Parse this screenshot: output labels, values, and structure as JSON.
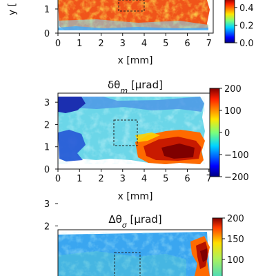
{
  "chart_data": [
    {
      "type": "heatmap",
      "title": "",
      "xlabel": "x [mm]",
      "ylabel": "y [",
      "xticks": [
        "0",
        "1",
        "2",
        "3",
        "4",
        "5",
        "6",
        "7"
      ],
      "yticks": [
        "0",
        "1"
      ],
      "xlim": [
        0,
        7.2
      ],
      "ylim": [
        0,
        1.6
      ],
      "colorbar": {
        "ticks": [
          "0.0",
          "0.2",
          "0.4"
        ],
        "range": [
          0.0,
          0.5
        ],
        "colormap": "jet"
      },
      "roi_box_mm": {
        "x0": 2.9,
        "x1": 4.1,
        "y0": 1.05,
        "y1": 1.6
      },
      "dominant_value": 0.42
    },
    {
      "type": "heatmap",
      "title": "δθ_m [μrad]",
      "xlabel": "x [mm]",
      "ylabel": "",
      "xticks": [
        "0",
        "1",
        "2",
        "3",
        "4",
        "5",
        "6",
        "7"
      ],
      "yticks": [
        "0",
        "1",
        "2",
        "3"
      ],
      "xlim": [
        0,
        7.2
      ],
      "ylim": [
        0,
        3.5
      ],
      "colorbar": {
        "ticks": [
          "200",
          "100",
          "0",
          "−100",
          "−200"
        ],
        "range": [
          -200,
          200
        ],
        "colormap": "jet"
      },
      "roi_box_mm": {
        "x0": 2.9,
        "x1": 4.0,
        "y0": 1.05,
        "y1": 2.25
      }
    },
    {
      "type": "heatmap",
      "title": "Δθ_σ [μrad]",
      "xlabel": "",
      "ylabel": "",
      "yticks": [
        "2",
        "3"
      ],
      "xlim": [
        0,
        7.2
      ],
      "ylim": [
        0,
        3.5
      ],
      "colorbar": {
        "ticks": [
          "200",
          "150",
          "100"
        ],
        "range": [
          50,
          200
        ],
        "colormap": "jet"
      },
      "roi_box_mm": {
        "x0": 2.9,
        "x1": 4.0,
        "y0": 0.0,
        "y1": 1.05
      }
    }
  ]
}
